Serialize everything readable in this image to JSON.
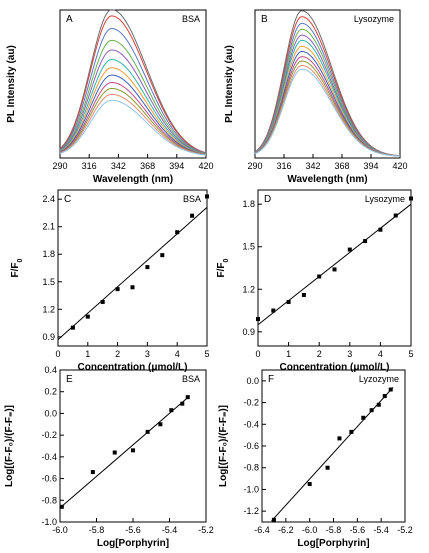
{
  "chart_data": [
    {
      "id": "A",
      "type": "line",
      "panel_letter": "A",
      "label": "BSA",
      "xlabel": "Wavelength (nm)",
      "ylabel": "PL Intensity (au)",
      "xlim": [
        290,
        420
      ],
      "ylim": [
        0,
        1
      ],
      "xticks": [
        290,
        316,
        342,
        368,
        394,
        420
      ],
      "yticks": [],
      "spectrum": {
        "peak_x": 336,
        "sigma_left": 19,
        "sigma_right": 31
      },
      "series": [
        {
          "color": "#6e6e6e",
          "peak": 0.992
        },
        {
          "color": "#d9423a",
          "peak": 0.95
        },
        {
          "color": "#5a78c8",
          "peak": 0.865
        },
        {
          "color": "#6ab04c",
          "peak": 0.785
        },
        {
          "color": "#8e5fb5",
          "peak": 0.72
        },
        {
          "color": "#2fb5a8",
          "peak": 0.655
        },
        {
          "color": "#f29b37",
          "peak": 0.6
        },
        {
          "color": "#3c62b8",
          "peak": 0.55
        },
        {
          "color": "#c24d8f",
          "peak": 0.5
        },
        {
          "color": "#8d9a30",
          "peak": 0.46
        },
        {
          "color": "#e38d75",
          "peak": 0.42
        },
        {
          "color": "#8fc3e8",
          "peak": 0.38
        }
      ]
    },
    {
      "id": "B",
      "type": "line",
      "panel_letter": "B",
      "label": "Lysozyme",
      "xlabel": "Wavelength (nm)",
      "ylabel": "PL Intensity (au)",
      "xlim": [
        290,
        420
      ],
      "ylim": [
        0,
        1
      ],
      "xticks": [
        290,
        316,
        342,
        368,
        394,
        420
      ],
      "yticks": [],
      "spectrum": {
        "peak_x": 332,
        "sigma_left": 16,
        "sigma_right": 27
      },
      "series": [
        {
          "color": "#6e6e6e",
          "peak": 0.985
        },
        {
          "color": "#d9423a",
          "peak": 0.945
        },
        {
          "color": "#5a78c8",
          "peak": 0.9
        },
        {
          "color": "#6ab04c",
          "peak": 0.86
        },
        {
          "color": "#8e5fb5",
          "peak": 0.82
        },
        {
          "color": "#2fb5a8",
          "peak": 0.785
        },
        {
          "color": "#f29b37",
          "peak": 0.745
        },
        {
          "color": "#3c62b8",
          "peak": 0.71
        },
        {
          "color": "#c24d8f",
          "peak": 0.675
        },
        {
          "color": "#8d9a30",
          "peak": 0.645
        },
        {
          "color": "#e38d75",
          "peak": 0.615
        },
        {
          "color": "#8fc3e8",
          "peak": 0.59
        }
      ]
    },
    {
      "id": "C",
      "type": "scatter",
      "panel_letter": "C",
      "label": "BSA",
      "xlabel": "Concentration (μmol/L)",
      "ylabel": "F/F",
      "ylabel_sub": "0",
      "xlim": [
        0,
        5
      ],
      "ylim": [
        0.8,
        2.5
      ],
      "xticks": [
        0,
        1,
        2,
        3,
        4,
        5
      ],
      "yticks": [
        0.9,
        1.2,
        1.5,
        1.8,
        2.1,
        2.4
      ],
      "ytick_labels": [
        "0.9",
        "1.2",
        "1.5",
        "1.8",
        "2.1",
        "2.4"
      ],
      "x": [
        0.5,
        1.0,
        1.5,
        2.0,
        2.5,
        3.0,
        3.5,
        4.0,
        4.5,
        5.0
      ],
      "y": [
        1.0,
        1.12,
        1.28,
        1.42,
        1.44,
        1.66,
        1.79,
        2.04,
        2.22,
        2.43
      ],
      "fit": {
        "x": [
          0,
          5
        ],
        "y": [
          0.87,
          2.31
        ]
      }
    },
    {
      "id": "D",
      "type": "scatter",
      "panel_letter": "D",
      "label": "Lysozyme",
      "xlabel": "Concentration (μmol/L)",
      "ylabel": "F/F",
      "ylabel_sub": "0",
      "xlim": [
        0,
        5
      ],
      "ylim": [
        0.8,
        1.9
      ],
      "xticks": [
        0,
        1,
        2,
        3,
        4,
        5
      ],
      "yticks": [
        0.9,
        1.2,
        1.5,
        1.8
      ],
      "ytick_labels": [
        "0.9",
        "1.2",
        "1.5",
        "1.8"
      ],
      "x": [
        0.0,
        0.5,
        1.0,
        1.5,
        2.0,
        2.5,
        3.0,
        3.5,
        4.0,
        4.5,
        5.0
      ],
      "y": [
        0.99,
        1.05,
        1.11,
        1.16,
        1.29,
        1.34,
        1.48,
        1.54,
        1.62,
        1.72,
        1.84
      ],
      "fit": {
        "x": [
          0,
          5
        ],
        "y": [
          0.95,
          1.8
        ]
      }
    },
    {
      "id": "E",
      "type": "scatter",
      "panel_letter": "E",
      "label": "BSA",
      "xlabel": "Log[Porphyrin]",
      "ylabel": "Log[(F-F₀)/(F-F₌)]",
      "xlim": [
        -6.0,
        -5.2
      ],
      "ylim": [
        -1.0,
        0.4
      ],
      "xticks": [
        -6.0,
        -5.8,
        -5.6,
        -5.4,
        -5.2
      ],
      "xtick_labels": [
        "-6.0",
        "-5.8",
        "-5.6",
        "-5.4",
        "-5.2"
      ],
      "yticks": [
        -1.0,
        -0.8,
        -0.6,
        -0.4,
        -0.2,
        0.0,
        0.2,
        0.4
      ],
      "ytick_labels": [
        "-1.0",
        "-0.8",
        "-0.6",
        "-0.4",
        "-0.2",
        "0.0",
        "0.2",
        "0.4"
      ],
      "x": [
        -5.99,
        -5.82,
        -5.7,
        -5.6,
        -5.52,
        -5.45,
        -5.39,
        -5.33,
        -5.3
      ],
      "y": [
        -0.86,
        -0.54,
        -0.36,
        -0.34,
        -0.17,
        -0.1,
        0.03,
        0.09,
        0.15
      ],
      "fit": {
        "x": [
          -6.0,
          -5.29
        ],
        "y": [
          -0.87,
          0.16
        ]
      }
    },
    {
      "id": "F",
      "type": "scatter",
      "panel_letter": "F",
      "label": "Lyzozyme",
      "xlabel": "Log[Porphyrin]",
      "ylabel": "Log[(F-F₀)/(F-F₌)]",
      "xlim": [
        -6.4,
        -5.2
      ],
      "ylim": [
        -1.3,
        0.1
      ],
      "xticks": [
        -6.4,
        -6.2,
        -6.0,
        -5.8,
        -5.6,
        -5.4,
        -5.2
      ],
      "xtick_labels": [
        "-6.4",
        "-6.2",
        "-6.0",
        "-5.8",
        "-5.6",
        "-5.4",
        "-5.2"
      ],
      "yticks": [
        -1.2,
        -1.0,
        -0.8,
        -0.6,
        -0.4,
        -0.2,
        0.0
      ],
      "ytick_labels": [
        "-1.2",
        "-1.0",
        "-0.8",
        "-0.6",
        "-0.4",
        "-0.2",
        "0.0"
      ],
      "x": [
        -6.3,
        -6.0,
        -5.85,
        -5.75,
        -5.65,
        -5.55,
        -5.48,
        -5.42,
        -5.37,
        -5.32
      ],
      "y": [
        -1.28,
        -0.95,
        -0.8,
        -0.53,
        -0.47,
        -0.34,
        -0.27,
        -0.22,
        -0.14,
        -0.08
      ],
      "fit": {
        "x": [
          -6.32,
          -5.3
        ],
        "y": [
          -1.29,
          -0.06
        ]
      }
    }
  ]
}
